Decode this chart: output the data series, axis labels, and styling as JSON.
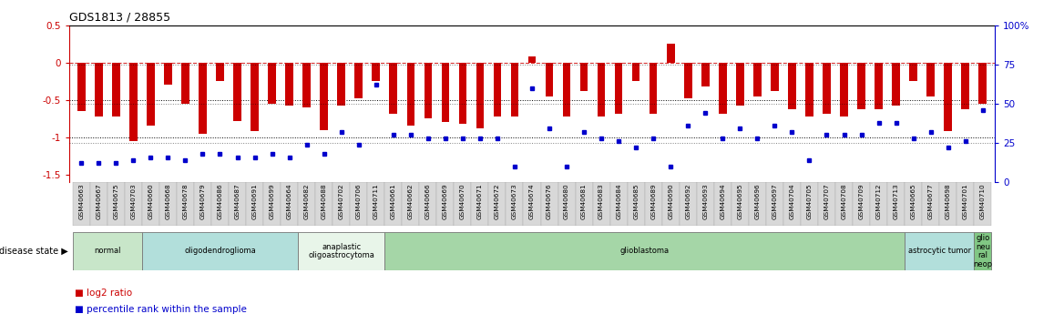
{
  "title": "GDS1813 / 28855",
  "samples": [
    "GSM40663",
    "GSM40667",
    "GSM40675",
    "GSM40703",
    "GSM40660",
    "GSM40668",
    "GSM40678",
    "GSM40679",
    "GSM40686",
    "GSM40687",
    "GSM40691",
    "GSM40699",
    "GSM40664",
    "GSM40682",
    "GSM40688",
    "GSM40702",
    "GSM40706",
    "GSM40711",
    "GSM40661",
    "GSM40662",
    "GSM40666",
    "GSM40669",
    "GSM40670",
    "GSM40671",
    "GSM40672",
    "GSM40673",
    "GSM40674",
    "GSM40676",
    "GSM40680",
    "GSM40681",
    "GSM40683",
    "GSM40684",
    "GSM40685",
    "GSM40689",
    "GSM40690",
    "GSM40692",
    "GSM40693",
    "GSM40694",
    "GSM40695",
    "GSM40696",
    "GSM40697",
    "GSM40704",
    "GSM40705",
    "GSM40707",
    "GSM40708",
    "GSM40709",
    "GSM40712",
    "GSM40713",
    "GSM40665",
    "GSM40677",
    "GSM40698",
    "GSM40701",
    "GSM40710"
  ],
  "log2_ratio": [
    -0.65,
    -0.72,
    -0.72,
    -1.05,
    -0.85,
    -0.3,
    -0.55,
    -0.95,
    -0.25,
    -0.78,
    -0.92,
    -0.55,
    -0.58,
    -0.6,
    -0.9,
    -0.58,
    -0.48,
    -0.25,
    -0.68,
    -0.85,
    -0.75,
    -0.8,
    -0.82,
    -0.88,
    -0.72,
    -0.72,
    0.08,
    -0.45,
    -0.72,
    -0.38,
    -0.72,
    -0.68,
    -0.25,
    -0.68,
    0.25,
    -0.48,
    -0.32,
    -0.68,
    -0.58,
    -0.45,
    -0.38,
    -0.62,
    -0.72,
    -0.68,
    -0.72,
    -0.62,
    -0.62,
    -0.58,
    -0.25,
    -0.45,
    -0.92,
    -0.62,
    -0.55
  ],
  "percentile": [
    12,
    12,
    12,
    14,
    16,
    16,
    14,
    18,
    18,
    16,
    16,
    18,
    16,
    24,
    18,
    32,
    24,
    62,
    30,
    30,
    28,
    28,
    28,
    28,
    28,
    10,
    60,
    34,
    10,
    32,
    28,
    26,
    22,
    28,
    10,
    36,
    44,
    28,
    34,
    28,
    36,
    32,
    14,
    30,
    30,
    30,
    38,
    38,
    28,
    32,
    22,
    26,
    46
  ],
  "disease_groups": [
    {
      "label": "normal",
      "start": 0,
      "end": 4,
      "color": "#c8e6c9"
    },
    {
      "label": "oligodendroglioma",
      "start": 4,
      "end": 13,
      "color": "#b2dfdb"
    },
    {
      "label": "anaplastic\noligoastrocytoma",
      "start": 13,
      "end": 18,
      "color": "#e8f5e9"
    },
    {
      "label": "glioblastoma",
      "start": 18,
      "end": 48,
      "color": "#a5d6a7"
    },
    {
      "label": "astrocytic tumor",
      "start": 48,
      "end": 52,
      "color": "#b2dfdb"
    },
    {
      "label": "glio\nneu\nral\nneop",
      "start": 52,
      "end": 53,
      "color": "#81c784"
    }
  ],
  "bar_color": "#cc0000",
  "dot_color": "#0000cc",
  "ylim_left": [
    -1.6,
    0.5
  ],
  "ylim_right": [
    0,
    100
  ],
  "yticks_left": [
    -1.5,
    -1.0,
    -0.5,
    0.0,
    0.5
  ],
  "yticks_right": [
    0,
    25,
    50,
    75,
    100
  ],
  "background_color": "#ffffff"
}
